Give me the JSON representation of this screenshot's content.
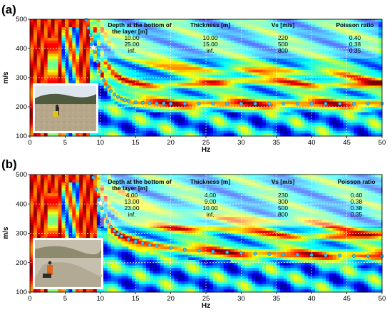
{
  "chart_data": [
    {
      "type": "heatmap",
      "panel_label": "(a)",
      "xlabel": "Hz",
      "ylabel": "m/s",
      "xlim": [
        0,
        50
      ],
      "ylim": [
        100,
        500
      ],
      "x_ticks": [
        0,
        5,
        10,
        15,
        20,
        25,
        30,
        35,
        40,
        45,
        50
      ],
      "y_ticks": [
        100,
        200,
        300,
        400,
        500
      ],
      "grid": true,
      "colormap": "jet",
      "table": {
        "headers": [
          "Depth at the bottom of",
          "the layer [m]",
          "Thickness [m]",
          "Vs [m/s]",
          "Poisson ratio"
        ],
        "rows": [
          [
            "10.00",
            "10.00",
            "220",
            "0.40"
          ],
          [
            "25.00",
            "15.00",
            "500",
            "0.38"
          ],
          [
            "inf.",
            "inf.",
            "800",
            "0.35"
          ]
        ]
      },
      "marker": {
        "x": 9.0,
        "y": 403
      },
      "dispersion_curve": {
        "x": [
          8.0,
          8.3,
          8.6,
          8.9,
          9.2,
          9.6,
          10.0,
          10.5,
          11.0,
          11.5,
          12.0,
          12.5,
          13.0,
          13.5,
          14.0,
          15.0,
          16.0,
          17.0,
          18.0,
          19.0,
          20.0,
          22.0,
          24.0,
          26.0,
          28.0,
          30.0,
          32.0,
          34.0,
          36.0,
          38.0,
          40.0,
          42.0,
          44.0,
          46.0,
          48.0,
          50.0
        ],
        "y": [
          498,
          470,
          445,
          420,
          390,
          355,
          320,
          292,
          270,
          254,
          242,
          234,
          228,
          223,
          220,
          216,
          214,
          213,
          212,
          212,
          211,
          211,
          211,
          211,
          211,
          211,
          211,
          211,
          211,
          211,
          211,
          211,
          211,
          211,
          211,
          211
        ]
      }
    },
    {
      "type": "heatmap",
      "panel_label": "(b)",
      "xlabel": "Hz",
      "ylabel": "m/s",
      "xlim": [
        0,
        50
      ],
      "ylim": [
        100,
        500
      ],
      "x_ticks": [
        0,
        5,
        10,
        15,
        20,
        25,
        30,
        35,
        40,
        45,
        50
      ],
      "y_ticks": [
        100,
        200,
        300,
        400,
        500
      ],
      "grid": true,
      "colormap": "jet",
      "table": {
        "headers": [
          "Depth at the bottom of",
          "the layer [m]",
          "Thickness [m]",
          "Vs [m/s]",
          "Poisson ratio"
        ],
        "rows": [
          [
            "4.00",
            "4.00",
            "230",
            "0.40"
          ],
          [
            "13.00",
            "9.00",
            "300",
            "0.38"
          ],
          [
            "23.00",
            "10.00",
            "500",
            "0.38"
          ],
          [
            "inf.",
            "inf.",
            "800",
            "0.35"
          ]
        ]
      },
      "marker": {
        "x": 10.0,
        "y": 403
      },
      "dispersion_curve": {
        "x": [
          9.0,
          9.4,
          9.8,
          10.2,
          10.6,
          11.0,
          11.5,
          12.0,
          12.5,
          13.0,
          14.0,
          15.0,
          16.0,
          17.0,
          18.0,
          20.0,
          22.0,
          24.0,
          26.0,
          28.0,
          30.0,
          32.0,
          34.0,
          36.0,
          38.0,
          40.0,
          42.0,
          44.0,
          46.0,
          48.0,
          50.0
        ],
        "y": [
          490,
          450,
          415,
          385,
          360,
          340,
          322,
          308,
          298,
          290,
          280,
          272,
          266,
          261,
          257,
          250,
          245,
          241,
          238,
          235,
          233,
          231,
          229,
          228,
          227,
          226,
          225,
          224,
          223,
          222,
          222
        ]
      }
    }
  ]
}
